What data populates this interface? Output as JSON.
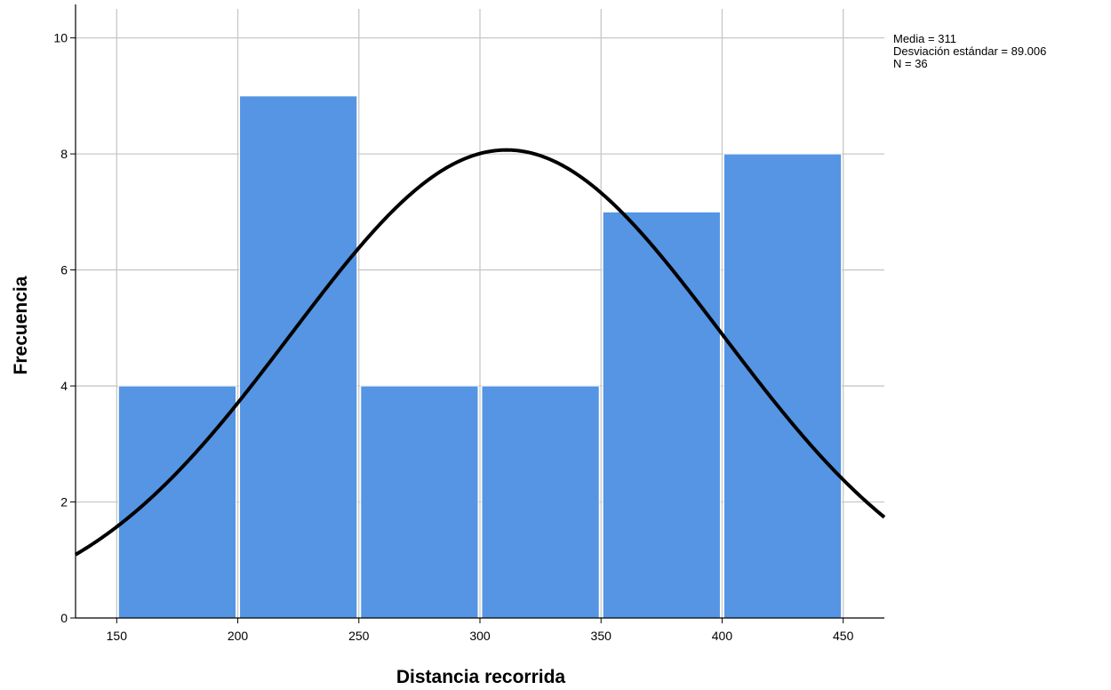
{
  "chart_data": {
    "type": "bar",
    "subtype": "histogram",
    "bins": [
      {
        "x0": 150,
        "x1": 200,
        "value": 4
      },
      {
        "x0": 200,
        "x1": 250,
        "value": 9
      },
      {
        "x0": 250,
        "x1": 300,
        "value": 4
      },
      {
        "x0": 300,
        "x1": 350,
        "value": 4
      },
      {
        "x0": 350,
        "x1": 400,
        "value": 7
      },
      {
        "x0": 400,
        "x1": 450,
        "value": 8
      }
    ],
    "normal_curve": {
      "mean": 311,
      "sd": 89.006,
      "n": 36,
      "bin_width": 50
    },
    "xlabel": "Distancia recorrida",
    "ylabel": "Frecuencia",
    "xlim": [
      133,
      467
    ],
    "ylim": [
      0,
      10.5
    ],
    "xticks": [
      150,
      200,
      250,
      300,
      350,
      400,
      450
    ],
    "yticks": [
      0,
      2,
      4,
      6,
      8,
      10
    ],
    "grid": true,
    "colors": {
      "bar": "#5595e3",
      "bar_edge": "#ffffff",
      "curve": "#000000",
      "grid": "#c8c8c8",
      "axis": "#000000"
    }
  },
  "stats": {
    "mean_label": "Media = 311",
    "sd_label": "Desviación estándar = 89.006",
    "n_label": "N = 36"
  }
}
